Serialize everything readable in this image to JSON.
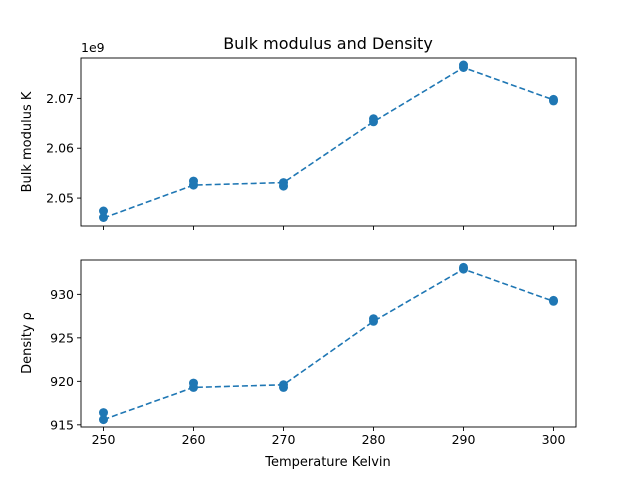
{
  "title": "Bulk modulus and Density",
  "chart_data": [
    {
      "type": "scatter",
      "ylabel": "Bulk modulus K",
      "offset_text": "1e9",
      "xlabel": "",
      "x": [
        250,
        260,
        270,
        280,
        290,
        300
      ],
      "line_y": [
        2046000000.0,
        2052600000.0,
        2053100000.0,
        2065300000.0,
        2076200000.0,
        2069700000.0
      ],
      "points": [
        [
          250,
          2046100000.0
        ],
        [
          250,
          2047400000.0
        ],
        [
          260,
          2052600000.0
        ],
        [
          260,
          2053400000.0
        ],
        [
          270,
          2052400000.0
        ],
        [
          270,
          2053100000.0
        ],
        [
          280,
          2065300000.0
        ],
        [
          280,
          2065900000.0
        ],
        [
          290,
          2076200000.0
        ],
        [
          290,
          2076700000.0
        ],
        [
          300,
          2069500000.0
        ],
        [
          300,
          2069800000.0
        ]
      ],
      "xlim": [
        247.5,
        302.5
      ],
      "ylim": [
        2044400000.0,
        2078100000.0
      ],
      "xticks": [
        250,
        260,
        270,
        280,
        290,
        300
      ],
      "xticklabels_visible": false,
      "yticks": [
        2050000000.0,
        2060000000.0,
        2070000000.0
      ],
      "yticklabels": [
        "2.05",
        "2.06",
        "2.07"
      ],
      "color": "#1f77b4",
      "line_style": "dashed",
      "grid": false
    },
    {
      "type": "scatter",
      "ylabel": "Density ρ",
      "xlabel": "Temperature Kelvin",
      "x": [
        250,
        260,
        270,
        280,
        290,
        300
      ],
      "line_y": [
        915.6,
        919.3,
        919.6,
        926.9,
        932.9,
        929.2
      ],
      "points": [
        [
          250,
          915.6
        ],
        [
          250,
          916.4
        ],
        [
          260,
          919.3
        ],
        [
          260,
          919.8
        ],
        [
          270,
          919.3
        ],
        [
          270,
          919.6
        ],
        [
          280,
          926.9
        ],
        [
          280,
          927.2
        ],
        [
          290,
          932.9
        ],
        [
          290,
          933.1
        ],
        [
          300,
          929.2
        ],
        [
          300,
          929.3
        ]
      ],
      "xlim": [
        247.5,
        302.5
      ],
      "ylim": [
        914.75,
        933.95
      ],
      "xticks": [
        250,
        260,
        270,
        280,
        290,
        300
      ],
      "xticklabels": [
        "250",
        "260",
        "270",
        "280",
        "290",
        "300"
      ],
      "xticklabels_visible": true,
      "yticks": [
        915,
        920,
        925,
        930
      ],
      "yticklabels": [
        "915",
        "920",
        "925",
        "930"
      ],
      "color": "#1f77b4",
      "line_style": "dashed",
      "grid": false
    }
  ]
}
